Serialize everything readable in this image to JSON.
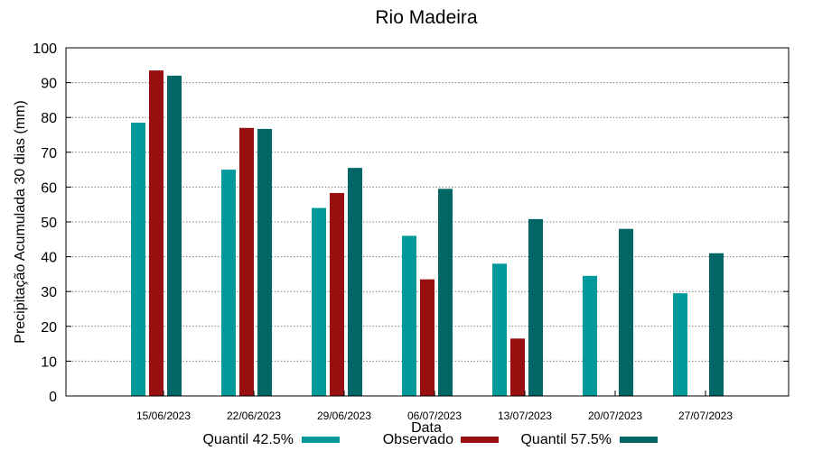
{
  "chart_data": {
    "type": "bar",
    "title": "Rio Madeira",
    "xlabel": "Data",
    "ylabel": "Precipitação Acumulada 30 dias (mm)",
    "ylim": [
      0,
      100
    ],
    "yticks": [
      "0",
      "10",
      "20",
      "30",
      "40",
      "50",
      "60",
      "70",
      "80",
      "90",
      "100"
    ],
    "grid": true,
    "legend_position": "bottom",
    "categories": [
      "15/06/2023",
      "22/06/2023",
      "29/06/2023",
      "06/07/2023",
      "13/07/2023",
      "20/07/2023",
      "27/07/2023"
    ],
    "series": [
      {
        "name": "Quantil 42.5%",
        "color": "#009999",
        "values": [
          78.5,
          65,
          54,
          46,
          38,
          34.5,
          29.5
        ]
      },
      {
        "name": "Observado",
        "color": "#990f0f",
        "values": [
          93.5,
          77,
          58.3,
          33.5,
          16.5,
          null,
          null
        ]
      },
      {
        "name": "Quantil 57.5%",
        "color": "#006666",
        "values": [
          92,
          76.7,
          65.5,
          59.5,
          50.8,
          48,
          41
        ]
      }
    ]
  }
}
